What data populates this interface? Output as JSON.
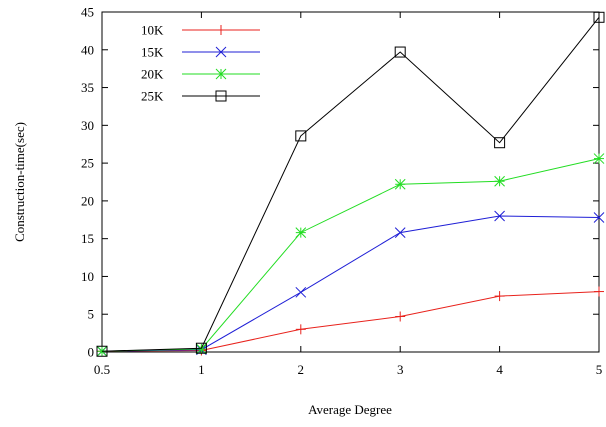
{
  "chart_data": {
    "type": "line",
    "title": "",
    "xlabel": "Average Degree",
    "ylabel": "Construction-time(sec)",
    "categories": [
      "0.5",
      "1",
      "2",
      "3",
      "4",
      "5"
    ],
    "ylim": [
      0,
      45
    ],
    "yticks": [
      "0",
      "5",
      "10",
      "15",
      "20",
      "25",
      "30",
      "35",
      "40",
      "45"
    ],
    "grid": false,
    "legend_position": "top-left",
    "series": [
      {
        "name": "10K",
        "color": "#e8221c",
        "marker": "plus",
        "values": [
          0.1,
          0.2,
          3.0,
          4.7,
          7.4,
          8.0
        ]
      },
      {
        "name": "15K",
        "color": "#1f1fd6",
        "marker": "x",
        "values": [
          0.1,
          0.3,
          7.9,
          15.8,
          18.0,
          17.8
        ]
      },
      {
        "name": "20K",
        "color": "#22dd22",
        "marker": "asterisk",
        "values": [
          0.1,
          0.4,
          15.8,
          22.2,
          22.6,
          25.6
        ]
      },
      {
        "name": "25K",
        "color": "#000000",
        "marker": "square",
        "values": [
          0.1,
          0.5,
          28.6,
          39.7,
          27.7,
          44.3
        ]
      }
    ]
  }
}
